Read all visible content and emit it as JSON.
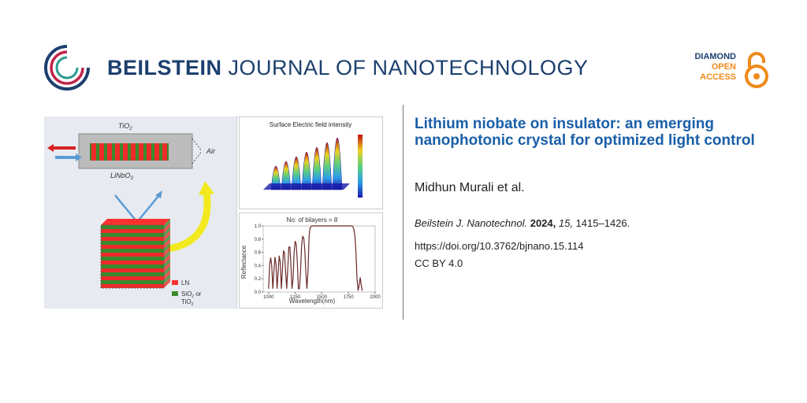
{
  "header": {
    "journal_name_bold": "BEILSTEIN",
    "journal_name_light": " JOURNAL OF NANOTECHNOLOGY",
    "logo_icon": "beilstein-circle-logo"
  },
  "open_access": {
    "line1": "DIAMOND",
    "line2": "OPEN",
    "line3": "ACCESS",
    "icon": "open-lock-icon",
    "colors": {
      "navy": "#1c3f6e",
      "orange": "#f08a1c"
    }
  },
  "article": {
    "title": "Lithium niobate on insulator: an emerging nanophotonic crystal for optimized light control",
    "authors": "Midhun Murali et al.",
    "citation_journal": "Beilstein J. Nanotechnol.",
    "citation_year": "2024,",
    "citation_volume": "15,",
    "citation_pages": " 1415–1426.",
    "doi": "https://doi.org/10.3762/bjnano.15.114",
    "license": "CC BY 4.0"
  },
  "graphic": {
    "waveguide_top_label": "TiO",
    "waveguide_top_sub": "2",
    "waveguide_bottom_label": "LiNbO",
    "waveguide_bottom_sub": "3",
    "air_label": "Air",
    "legend_ln": "LN",
    "legend_sio2_a": "SiO",
    "legend_sio2_sub": "2",
    "legend_sio2_b": " or",
    "legend_tio2": "TiO",
    "legend_tio2_sub": "2",
    "field_plot_title": "Surface Electric field intensity",
    "colors": {
      "ln_red": "#ee2a2a",
      "sio2_green": "#3a8a2e",
      "arrow_yellow": "#f2ea1e",
      "arrow_blue": "#5b9bd5"
    }
  },
  "chart_data": {
    "type": "line",
    "title": "No: of bilayers = 8",
    "xlabel": "Wavelength(nm)",
    "ylabel": "Reflectance",
    "xlim": [
      950,
      2000
    ],
    "ylim": [
      0.0,
      1.0
    ],
    "xticks": [
      "1000",
      "1250",
      "1500",
      "1750",
      "2000"
    ],
    "yticks": [
      "0.0",
      "0.2",
      "0.4",
      "0.6",
      "0.8",
      "1.0"
    ],
    "color": "#6b2a2a",
    "series": [
      {
        "x": [
          1000,
          1010,
          1020,
          1030,
          1040,
          1050,
          1060,
          1070,
          1080,
          1090,
          1100,
          1110,
          1120,
          1130,
          1140,
          1150,
          1160,
          1170,
          1180,
          1190,
          1200,
          1210,
          1220,
          1230,
          1240,
          1250,
          1260,
          1270,
          1280,
          1290,
          1300,
          1310,
          1320,
          1330,
          1340,
          1350,
          1360,
          1370,
          1380,
          1390,
          1400,
          1410,
          1420,
          1430,
          1440,
          1450,
          1500,
          1550,
          1600,
          1650,
          1700,
          1750,
          1780,
          1790,
          1800,
          1810,
          1820,
          1830,
          1840,
          1850,
          1860,
          1870,
          1880
        ],
        "y": [
          0.05,
          0.4,
          0.52,
          0.4,
          0.05,
          0.3,
          0.53,
          0.42,
          0.05,
          0.3,
          0.55,
          0.45,
          0.05,
          0.32,
          0.62,
          0.6,
          0.3,
          0.05,
          0.35,
          0.68,
          0.68,
          0.4,
          0.05,
          0.2,
          0.6,
          0.77,
          0.72,
          0.45,
          0.05,
          0.05,
          0.3,
          0.7,
          0.84,
          0.82,
          0.65,
          0.3,
          0.05,
          0.3,
          0.85,
          0.97,
          0.99,
          1.0,
          1.0,
          1.0,
          1.0,
          1.0,
          1.0,
          1.0,
          1.0,
          1.0,
          1.0,
          1.0,
          1.0,
          0.99,
          0.95,
          0.85,
          0.6,
          0.2,
          0.02,
          0.1,
          0.22,
          0.1,
          0.02
        ]
      }
    ]
  }
}
